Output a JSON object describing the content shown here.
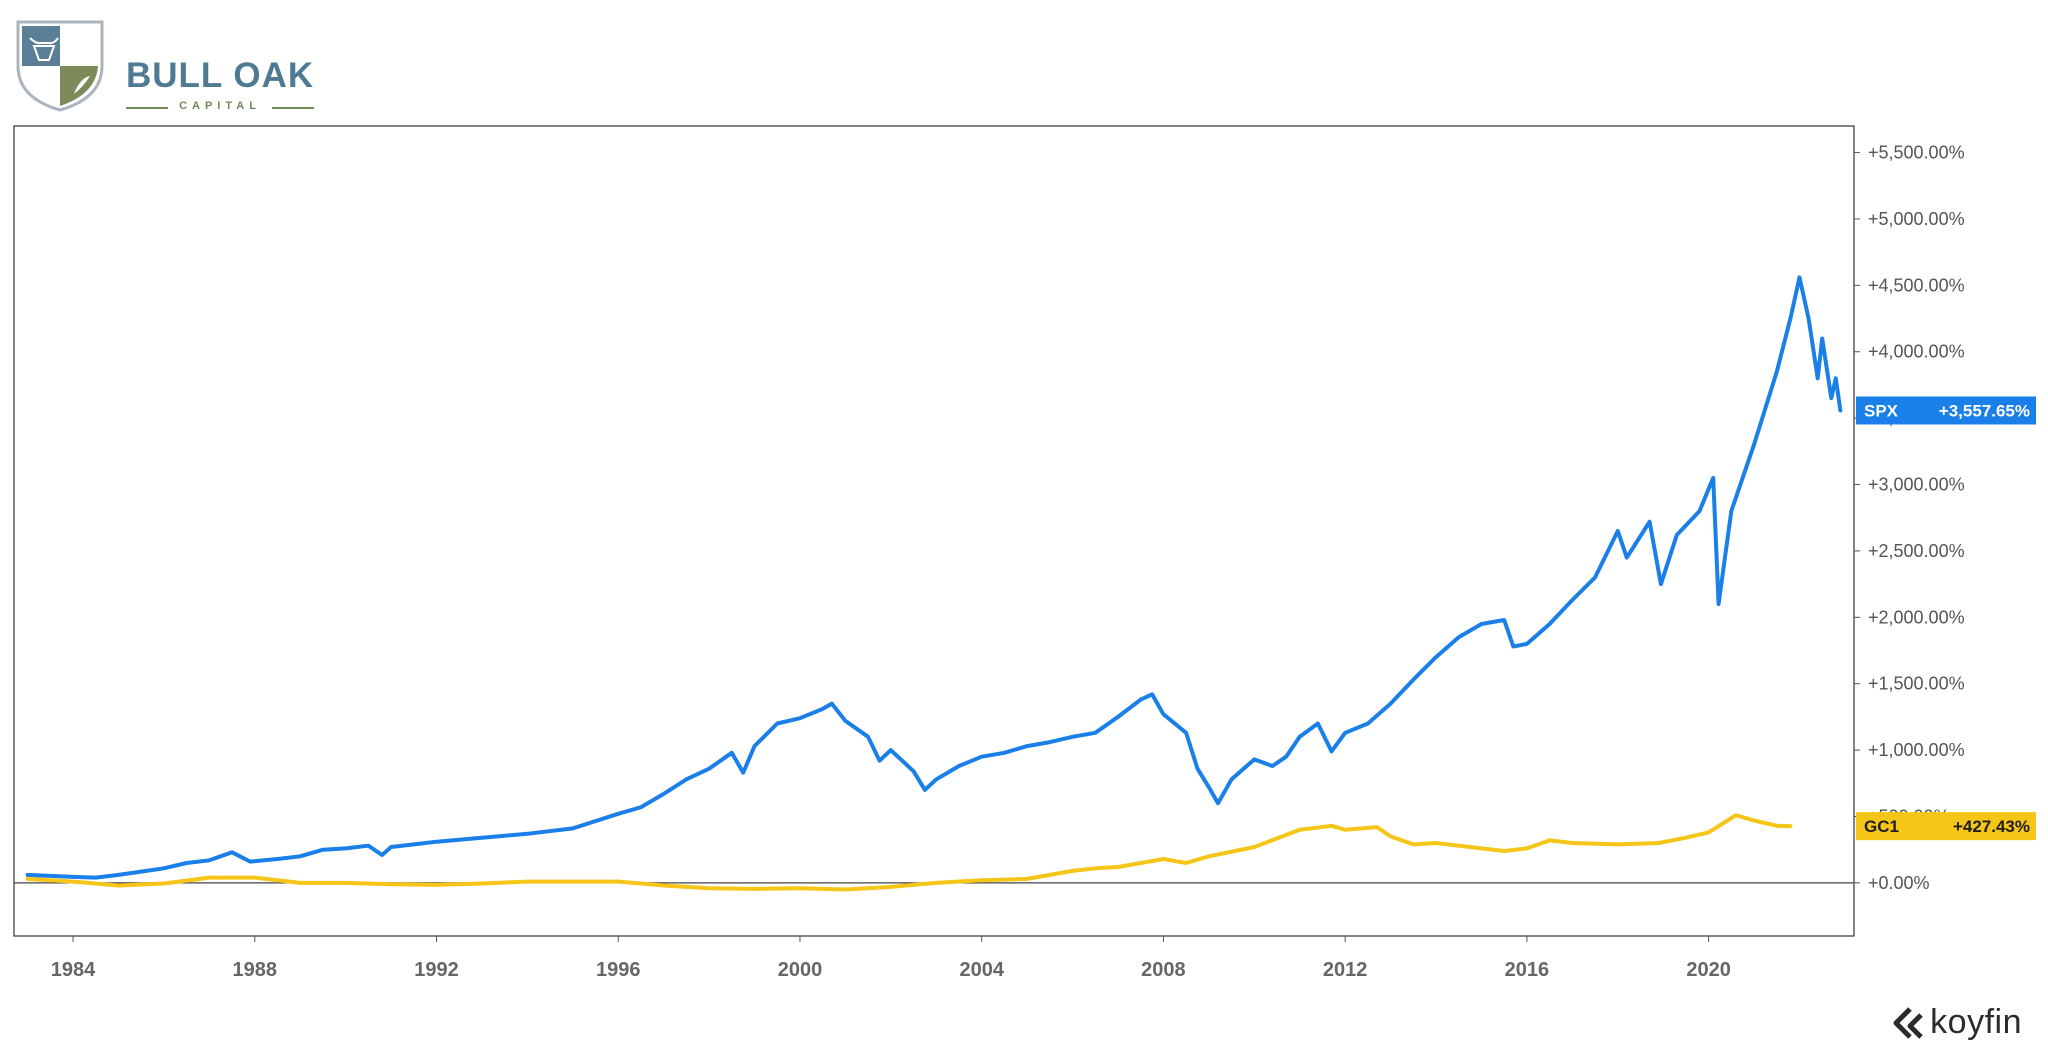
{
  "logo": {
    "title": "BULL OAK",
    "subtitle": "CAPITAL",
    "colors": {
      "blue": "#4f7a93",
      "olive": "#7d8b5a"
    }
  },
  "watermark": {
    "text": "koyfin",
    "icon": "koyfin-arrow-icon"
  },
  "chart_data": {
    "type": "line",
    "grid": false,
    "legend_placement": "right-axis badges",
    "x_range": [
      1982.7,
      2023.2
    ],
    "y_range": [
      -400,
      5700
    ],
    "x_ticks": [
      {
        "value": 1984,
        "label": "1984"
      },
      {
        "value": 1988,
        "label": "1988"
      },
      {
        "value": 1992,
        "label": "1992"
      },
      {
        "value": 1996,
        "label": "1996"
      },
      {
        "value": 2000,
        "label": "2000"
      },
      {
        "value": 2004,
        "label": "2004"
      },
      {
        "value": 2008,
        "label": "2008"
      },
      {
        "value": 2012,
        "label": "2012"
      },
      {
        "value": 2016,
        "label": "2016"
      },
      {
        "value": 2020,
        "label": "2020"
      }
    ],
    "y_ticks": [
      {
        "value": 0,
        "label": "+0.00%"
      },
      {
        "value": 500,
        "label": "+500.00%"
      },
      {
        "value": 1000,
        "label": "+1,000.00%"
      },
      {
        "value": 1500,
        "label": "+1,500.00%"
      },
      {
        "value": 2000,
        "label": "+2,000.00%"
      },
      {
        "value": 2500,
        "label": "+2,500.00%"
      },
      {
        "value": 3000,
        "label": "+3,000.00%"
      },
      {
        "value": 3500,
        "label": "+3,500.00%"
      },
      {
        "value": 4000,
        "label": "+4,000.00%"
      },
      {
        "value": 4500,
        "label": "+4,500.00%"
      },
      {
        "value": 5000,
        "label": "+5,000.00%"
      },
      {
        "value": 5500,
        "label": "+5,500.00%"
      }
    ],
    "series": [
      {
        "name": "SPX",
        "badge_value": "+3,557.65%",
        "last_value": 3557.65,
        "color": "#1a7fe8",
        "points": [
          [
            1983.0,
            60
          ],
          [
            1984.0,
            45
          ],
          [
            1984.5,
            40
          ],
          [
            1985.0,
            60
          ],
          [
            1985.5,
            85
          ],
          [
            1986.0,
            110
          ],
          [
            1986.5,
            150
          ],
          [
            1987.0,
            170
          ],
          [
            1987.5,
            230
          ],
          [
            1987.9,
            160
          ],
          [
            1988.5,
            180
          ],
          [
            1989.0,
            200
          ],
          [
            1989.5,
            250
          ],
          [
            1990.0,
            260
          ],
          [
            1990.5,
            280
          ],
          [
            1990.8,
            210
          ],
          [
            1991.0,
            270
          ],
          [
            1991.5,
            290
          ],
          [
            1992.0,
            310
          ],
          [
            1993.0,
            340
          ],
          [
            1994.0,
            370
          ],
          [
            1995.0,
            410
          ],
          [
            1996.0,
            520
          ],
          [
            1996.5,
            570
          ],
          [
            1997.0,
            670
          ],
          [
            1997.5,
            780
          ],
          [
            1998.0,
            860
          ],
          [
            1998.5,
            980
          ],
          [
            1998.75,
            830
          ],
          [
            1999.0,
            1030
          ],
          [
            1999.5,
            1200
          ],
          [
            2000.0,
            1240
          ],
          [
            2000.5,
            1310
          ],
          [
            2000.7,
            1350
          ],
          [
            2001.0,
            1220
          ],
          [
            2001.5,
            1100
          ],
          [
            2001.75,
            920
          ],
          [
            2002.0,
            1000
          ],
          [
            2002.5,
            840
          ],
          [
            2002.75,
            700
          ],
          [
            2003.0,
            780
          ],
          [
            2003.5,
            880
          ],
          [
            2004.0,
            950
          ],
          [
            2004.5,
            980
          ],
          [
            2005.0,
            1030
          ],
          [
            2005.5,
            1060
          ],
          [
            2006.0,
            1100
          ],
          [
            2006.5,
            1130
          ],
          [
            2007.0,
            1250
          ],
          [
            2007.5,
            1380
          ],
          [
            2007.75,
            1420
          ],
          [
            2008.0,
            1270
          ],
          [
            2008.5,
            1130
          ],
          [
            2008.75,
            860
          ],
          [
            2009.0,
            720
          ],
          [
            2009.2,
            600
          ],
          [
            2009.5,
            780
          ],
          [
            2010.0,
            930
          ],
          [
            2010.4,
            880
          ],
          [
            2010.7,
            950
          ],
          [
            2011.0,
            1100
          ],
          [
            2011.4,
            1200
          ],
          [
            2011.7,
            990
          ],
          [
            2012.0,
            1130
          ],
          [
            2012.5,
            1200
          ],
          [
            2013.0,
            1350
          ],
          [
            2013.5,
            1530
          ],
          [
            2014.0,
            1700
          ],
          [
            2014.5,
            1850
          ],
          [
            2015.0,
            1950
          ],
          [
            2015.5,
            1980
          ],
          [
            2015.7,
            1780
          ],
          [
            2016.0,
            1800
          ],
          [
            2016.5,
            1950
          ],
          [
            2017.0,
            2130
          ],
          [
            2017.5,
            2300
          ],
          [
            2018.0,
            2650
          ],
          [
            2018.2,
            2450
          ],
          [
            2018.7,
            2720
          ],
          [
            2018.95,
            2250
          ],
          [
            2019.3,
            2620
          ],
          [
            2019.8,
            2800
          ],
          [
            2020.1,
            3050
          ],
          [
            2020.22,
            2100
          ],
          [
            2020.5,
            2800
          ],
          [
            2021.0,
            3300
          ],
          [
            2021.5,
            3850
          ],
          [
            2021.8,
            4250
          ],
          [
            2022.0,
            4560
          ],
          [
            2022.2,
            4250
          ],
          [
            2022.4,
            3800
          ],
          [
            2022.5,
            4100
          ],
          [
            2022.7,
            3650
          ],
          [
            2022.8,
            3800
          ],
          [
            2022.9,
            3557.65
          ]
        ]
      },
      {
        "name": "GC1",
        "badge_value": "+427.43%",
        "last_value": 427.43,
        "color": "#f5c518",
        "points": [
          [
            1983.0,
            30
          ],
          [
            1984.0,
            10
          ],
          [
            1985.0,
            -20
          ],
          [
            1986.0,
            -5
          ],
          [
            1987.0,
            40
          ],
          [
            1988.0,
            40
          ],
          [
            1989.0,
            0
          ],
          [
            1990.0,
            0
          ],
          [
            1991.0,
            -10
          ],
          [
            1992.0,
            -15
          ],
          [
            1993.0,
            -5
          ],
          [
            1994.0,
            10
          ],
          [
            1995.0,
            10
          ],
          [
            1996.0,
            10
          ],
          [
            1997.0,
            -20
          ],
          [
            1998.0,
            -40
          ],
          [
            1999.0,
            -45
          ],
          [
            2000.0,
            -40
          ],
          [
            2001.0,
            -50
          ],
          [
            2002.0,
            -30
          ],
          [
            2003.0,
            0
          ],
          [
            2004.0,
            20
          ],
          [
            2005.0,
            30
          ],
          [
            2006.0,
            90
          ],
          [
            2006.5,
            110
          ],
          [
            2007.0,
            120
          ],
          [
            2008.0,
            180
          ],
          [
            2008.5,
            150
          ],
          [
            2009.0,
            200
          ],
          [
            2010.0,
            270
          ],
          [
            2011.0,
            400
          ],
          [
            2011.7,
            430
          ],
          [
            2012.0,
            400
          ],
          [
            2012.7,
            420
          ],
          [
            2013.0,
            350
          ],
          [
            2013.5,
            290
          ],
          [
            2014.0,
            300
          ],
          [
            2015.0,
            260
          ],
          [
            2015.5,
            240
          ],
          [
            2016.0,
            260
          ],
          [
            2016.5,
            320
          ],
          [
            2017.0,
            300
          ],
          [
            2018.0,
            290
          ],
          [
            2018.9,
            300
          ],
          [
            2019.5,
            340
          ],
          [
            2020.0,
            380
          ],
          [
            2020.6,
            510
          ],
          [
            2021.0,
            470
          ],
          [
            2021.5,
            430
          ],
          [
            2021.8,
            427.43
          ]
        ]
      }
    ]
  }
}
